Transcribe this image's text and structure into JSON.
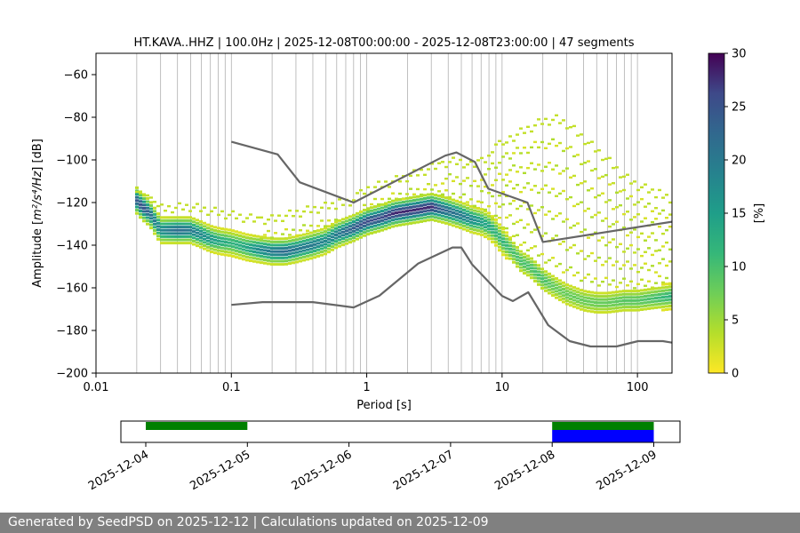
{
  "chart_data": {
    "type": "heatmap",
    "title": "HT.KAVA..HHZ | 100.0Hz | 2025-12-08T00:00:00 - 2025-12-08T23:00:00 | 47 segments",
    "xlabel": "Period [s]",
    "ylabel_prefix": "Amplitude [",
    "ylabel_math": "m²/s⁴/Hz",
    "ylabel_suffix": "] [dB]",
    "x_scale": "log",
    "xlim": [
      0.01,
      180
    ],
    "ylim": [
      -200,
      -50
    ],
    "x_ticks": [
      {
        "value": 0.01,
        "label": "0.01"
      },
      {
        "value": 0.1,
        "label": "0.1"
      },
      {
        "value": 1,
        "label": "1"
      },
      {
        "value": 10,
        "label": "10"
      },
      {
        "value": 100,
        "label": "100"
      }
    ],
    "y_ticks": [
      {
        "value": -60,
        "label": "−60"
      },
      {
        "value": -80,
        "label": "−80"
      },
      {
        "value": -100,
        "label": "−100"
      },
      {
        "value": -120,
        "label": "−120"
      },
      {
        "value": -140,
        "label": "−140"
      },
      {
        "value": -160,
        "label": "−160"
      },
      {
        "value": -180,
        "label": "−180"
      },
      {
        "value": -200,
        "label": "−200"
      }
    ],
    "grid": "vertical",
    "colorbar": {
      "label": "[%]",
      "range": [
        0,
        30
      ],
      "colormap": "viridis_r",
      "ticks": [
        {
          "value": 0,
          "label": "0"
        },
        {
          "value": 5,
          "label": "5"
        },
        {
          "value": 10,
          "label": "10"
        },
        {
          "value": 15,
          "label": "15"
        },
        {
          "value": 20,
          "label": "20"
        },
        {
          "value": 25,
          "label": "25"
        },
        {
          "value": 30,
          "label": "30"
        }
      ]
    },
    "main_band": [
      [
        0.02,
        -119,
        24
      ],
      [
        0.022,
        -122,
        26
      ],
      [
        0.025,
        -125,
        22
      ],
      [
        0.03,
        -133,
        18
      ],
      [
        0.04,
        -133,
        22
      ],
      [
        0.05,
        -133,
        20
      ],
      [
        0.06,
        -135,
        18
      ],
      [
        0.07,
        -137,
        16
      ],
      [
        0.08,
        -138,
        14
      ],
      [
        0.1,
        -139,
        12
      ],
      [
        0.13,
        -141,
        14
      ],
      [
        0.16,
        -142,
        18
      ],
      [
        0.2,
        -143,
        20
      ],
      [
        0.25,
        -143,
        22
      ],
      [
        0.3,
        -142,
        20
      ],
      [
        0.4,
        -140,
        20
      ],
      [
        0.5,
        -138,
        18
      ],
      [
        0.6,
        -135,
        20
      ],
      [
        0.8,
        -132,
        24
      ],
      [
        1,
        -129,
        26
      ],
      [
        1.3,
        -127,
        26
      ],
      [
        1.6,
        -125,
        28
      ],
      [
        2,
        -124,
        28
      ],
      [
        2.5,
        -123,
        28
      ],
      [
        3,
        -122,
        28
      ],
      [
        3.5,
        -123,
        24
      ],
      [
        4,
        -124,
        22
      ],
      [
        5,
        -126,
        20
      ],
      [
        6,
        -128,
        18
      ],
      [
        7,
        -129,
        15
      ],
      [
        8,
        -131,
        14
      ],
      [
        9,
        -134,
        12
      ],
      [
        10,
        -138,
        12
      ],
      [
        12,
        -143,
        10
      ],
      [
        14,
        -148,
        10
      ],
      [
        16,
        -150,
        10
      ],
      [
        18,
        -153,
        10
      ],
      [
        20,
        -156,
        10
      ],
      [
        25,
        -160,
        8
      ],
      [
        30,
        -163,
        8
      ],
      [
        40,
        -166,
        8
      ],
      [
        50,
        -167,
        8
      ],
      [
        60,
        -167,
        8
      ],
      [
        80,
        -166,
        9
      ],
      [
        100,
        -166,
        9
      ],
      [
        130,
        -165,
        10
      ],
      [
        175,
        -164,
        12
      ]
    ],
    "secondary_band": [
      [
        0.02,
        -115,
        3
      ],
      [
        0.025,
        -117,
        3
      ],
      [
        0.03,
        -123,
        3
      ],
      [
        0.05,
        -122,
        3
      ],
      [
        0.07,
        -124,
        3
      ],
      [
        0.1,
        -126,
        3
      ],
      [
        0.15,
        -128,
        3
      ],
      [
        0.2,
        -128,
        3
      ],
      [
        0.3,
        -125,
        3
      ],
      [
        0.5,
        -122,
        3
      ],
      [
        0.8,
        -119,
        3
      ],
      [
        1,
        -114,
        3
      ],
      [
        2,
        -108,
        3
      ],
      [
        4,
        -101,
        3
      ],
      [
        5,
        -101,
        3
      ],
      [
        6,
        -103,
        3
      ],
      [
        8,
        -98,
        3
      ],
      [
        10,
        -92,
        3
      ],
      [
        15,
        -86,
        3
      ],
      [
        20,
        -82,
        3
      ],
      [
        25,
        -81,
        3
      ],
      [
        30,
        -83,
        3
      ],
      [
        40,
        -90,
        3
      ],
      [
        60,
        -100,
        3
      ],
      [
        80,
        -108,
        3
      ],
      [
        100,
        -112,
        3
      ],
      [
        130,
        -115,
        3
      ],
      [
        175,
        -118,
        3
      ]
    ],
    "nhnm": [
      [
        0.1,
        -91.5
      ],
      [
        0.22,
        -97.4
      ],
      [
        0.32,
        -110.5
      ],
      [
        0.8,
        -120
      ],
      [
        3.8,
        -98
      ],
      [
        4.6,
        -96.5
      ],
      [
        6.3,
        -101
      ],
      [
        7.9,
        -113.5
      ],
      [
        15.4,
        -120
      ],
      [
        20,
        -138.5
      ],
      [
        180,
        -129
      ]
    ],
    "nlnm": [
      [
        0.1,
        -168
      ],
      [
        0.17,
        -166.7
      ],
      [
        0.4,
        -166.7
      ],
      [
        0.8,
        -169.2
      ],
      [
        1.24,
        -163.7
      ],
      [
        2.4,
        -148.6
      ],
      [
        4.3,
        -141.1
      ],
      [
        5,
        -141.1
      ],
      [
        6,
        -149
      ],
      [
        10,
        -163.8
      ],
      [
        12,
        -166.2
      ],
      [
        15.6,
        -162.1
      ],
      [
        21.9,
        -177.5
      ],
      [
        31.6,
        -185
      ],
      [
        45,
        -187.5
      ],
      [
        70,
        -187.5
      ],
      [
        101,
        -185
      ],
      [
        154,
        -185
      ],
      [
        180,
        -185.7
      ]
    ]
  },
  "timeline": {
    "ticks": [
      "2025-12-04",
      "2025-12-05",
      "2025-12-06",
      "2025-12-07",
      "2025-12-08",
      "2025-12-09"
    ],
    "start_date": "2025-12-03",
    "end_date": "2025-12-09",
    "green_segments": [
      [
        "2025-12-04",
        "2025-12-05"
      ],
      [
        "2025-12-08",
        "2025-12-09"
      ]
    ],
    "blue_segments": [
      [
        "2025-12-08",
        "2025-12-09"
      ]
    ],
    "colors": {
      "green": "#008000",
      "blue": "#0000ff"
    }
  },
  "footer": {
    "text": "Generated by SeedPSD on 2025-12-12 | Calculations updated on 2025-12-09"
  }
}
